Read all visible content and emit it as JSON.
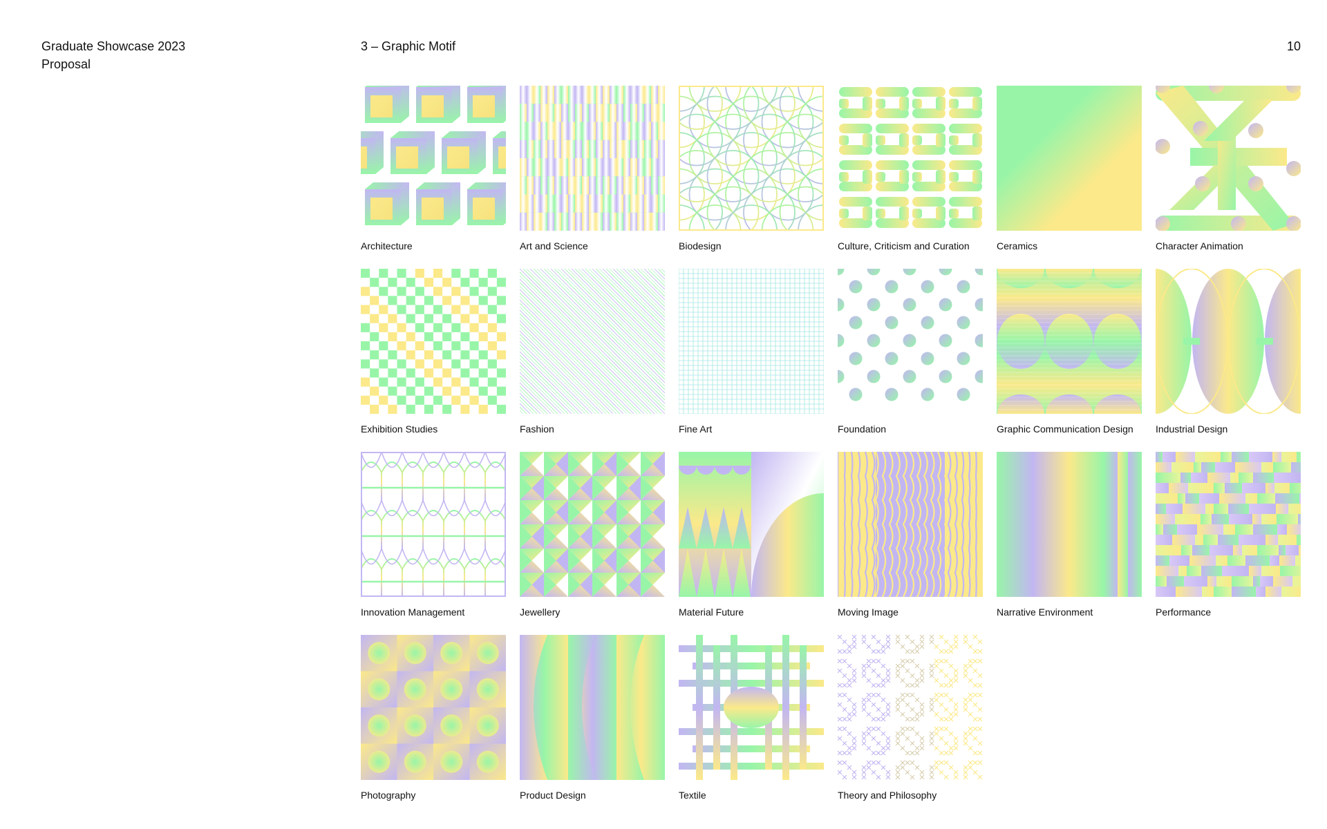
{
  "document": {
    "title_line1": "Graduate Showcase 2023",
    "title_line2": "Proposal",
    "section": "3 – Graphic Motif",
    "page_number": "10"
  },
  "palette": {
    "green": "#98F5A8",
    "yellow": "#FBE98A",
    "lavender": "#C2B6F2",
    "white": "#FFFFFF",
    "text": "#111111"
  },
  "motifs": [
    {
      "label": "Architecture",
      "pattern": "cubes"
    },
    {
      "label": "Art and Science",
      "pattern": "vertical-blocks"
    },
    {
      "label": "Biodesign",
      "pattern": "circle-lattice"
    },
    {
      "label": "Culture, Criticism and Curation",
      "pattern": "s-shapes"
    },
    {
      "label": "Ceramics",
      "pattern": "diagonal-gradient"
    },
    {
      "label": "Character Animation",
      "pattern": "diagonal-bands"
    },
    {
      "label": "Exhibition Studies",
      "pattern": "checkerboard"
    },
    {
      "label": "Fashion",
      "pattern": "diagonal-lines"
    },
    {
      "label": "Fine Art",
      "pattern": "fine-grid"
    },
    {
      "label": "Foundation",
      "pattern": "dots"
    },
    {
      "label": "Graphic Communication Design",
      "pattern": "semicircle-bands"
    },
    {
      "label": "Industrial Design",
      "pattern": "ellipses"
    },
    {
      "label": "Innovation Management",
      "pattern": "arch-grid"
    },
    {
      "label": "Jewellery",
      "pattern": "bowtie-tiles"
    },
    {
      "label": "Material Future",
      "pattern": "quadrant-shapes"
    },
    {
      "label": "Moving Image",
      "pattern": "wave-lines"
    },
    {
      "label": "Narrative Environment",
      "pattern": "vertical-gradient-strips"
    },
    {
      "label": "Performance",
      "pattern": "glitch-blocks"
    },
    {
      "label": "Photography",
      "pattern": "blur-squares"
    },
    {
      "label": "Product Design",
      "pattern": "curved-columns"
    },
    {
      "label": "Textile",
      "pattern": "weave"
    },
    {
      "label": "Theory and Philosophy",
      "pattern": "cross-stitch"
    }
  ]
}
